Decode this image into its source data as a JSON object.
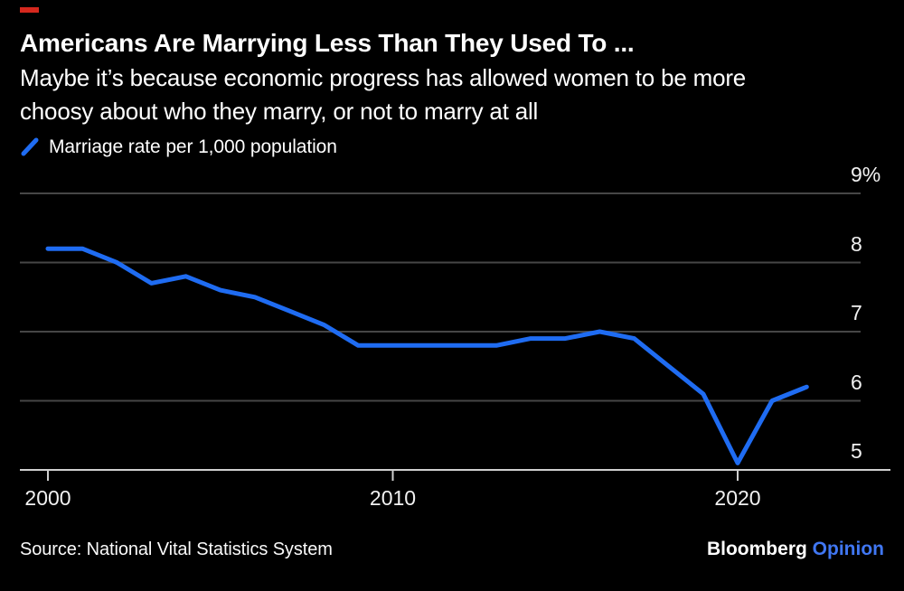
{
  "header": {
    "title": "Americans Are Marrying Less Than They Used To ...",
    "subtitle_lines": [
      "Maybe it’s because economic progress has allowed women to be more",
      "choosy about who they marry, or not to marry at all"
    ],
    "legend_label": "Marriage rate per 1,000 population"
  },
  "footer": {
    "source": "Source: National Vital Statistics System",
    "logo_brand": "Bloomberg",
    "logo_division": "Opinion"
  },
  "colors": {
    "background": "#000000",
    "line": "#1f6cf2",
    "gridline": "#464646",
    "axis_line": "#cfcfcf",
    "tick_label": "#f1f1f1",
    "red_flag": "#d6281e",
    "logo_division_blue": "#4077f3",
    "text": "#ffffff"
  },
  "chart_data": {
    "type": "line",
    "title": "Americans Are Marrying Less Than They Used To ...",
    "series_name": "Marriage rate per 1,000 population",
    "x": [
      2000,
      2001,
      2002,
      2003,
      2004,
      2005,
      2006,
      2007,
      2008,
      2009,
      2010,
      2011,
      2012,
      2013,
      2014,
      2015,
      2016,
      2017,
      2018,
      2019,
      2020,
      2021,
      2022
    ],
    "values": [
      8.2,
      8.2,
      8.0,
      7.7,
      7.8,
      7.6,
      7.5,
      7.3,
      7.1,
      6.8,
      6.8,
      6.8,
      6.8,
      6.8,
      6.9,
      6.9,
      7.0,
      6.9,
      6.5,
      6.1,
      5.1,
      6.0,
      6.2
    ],
    "xlabel": "",
    "ylabel": "Marriage rate per 1,000 population (%)",
    "ylim": [
      5,
      9
    ],
    "xlim": [
      2000,
      2022
    ],
    "grid": true,
    "legend_position": "top-left",
    "y_ticks": [
      {
        "label": "9%",
        "value": 9
      },
      {
        "label": "8",
        "value": 8
      },
      {
        "label": "7",
        "value": 7
      },
      {
        "label": "6",
        "value": 6
      },
      {
        "label": "5",
        "value": 5
      }
    ],
    "x_ticks": [
      {
        "label": "2000",
        "value": 2000
      },
      {
        "label": "2010",
        "value": 2010
      },
      {
        "label": "2020",
        "value": 2020
      }
    ]
  }
}
